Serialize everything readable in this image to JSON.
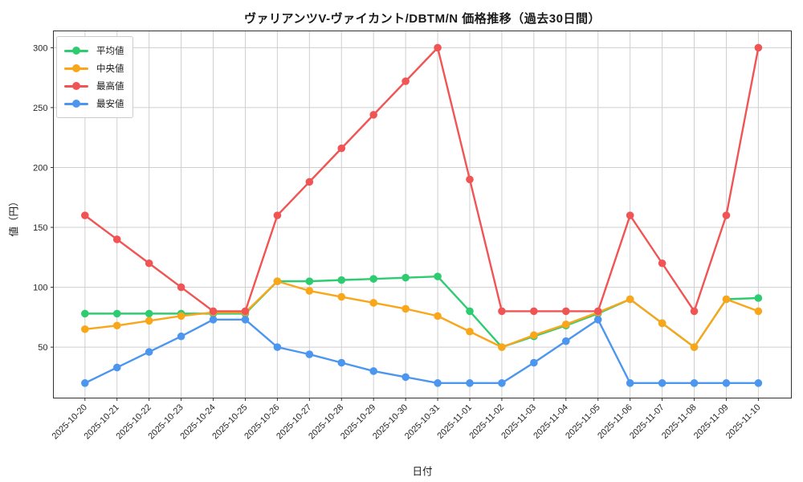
{
  "window": {
    "title": "price-history-chart"
  },
  "header": {
    "title": "ヴァリアンツV-ヴァイカント/DBTM/N 価格推移（過去30日間）"
  },
  "axes": {
    "xlabel": "日付",
    "ylabel": "値（円）"
  },
  "colors": {
    "average": "#2ecc71",
    "median": "#f9a61b",
    "max": "#f05454",
    "min": "#4c96f0",
    "grid": "#cfcfcf",
    "spine": "#333333",
    "text": "#262626",
    "background": "#ffffff"
  },
  "chart_data": {
    "type": "line",
    "title": "ヴァリアンツV-ヴァイカント/DBTM/N 価格推移（過去30日間）",
    "xlabel": "日付",
    "ylabel": "値（円）",
    "x": [
      "2025-10-20",
      "2025-10-21",
      "2025-10-22",
      "2025-10-23",
      "2025-10-24",
      "2025-10-25",
      "2025-10-26",
      "2025-10-27",
      "2025-10-28",
      "2025-10-29",
      "2025-10-30",
      "2025-10-31",
      "2025-11-01",
      "2025-11-02",
      "2025-11-03",
      "2025-11-04",
      "2025-11-05",
      "2025-11-06",
      "2025-11-07",
      "2025-11-08",
      "2025-11-09",
      "2025-11-10"
    ],
    "series": [
      {
        "id": "average",
        "name": "平均値",
        "color": "#2ecc71",
        "values": [
          78,
          78,
          78,
          78,
          78,
          78,
          105,
          105,
          106,
          107,
          108,
          109,
          80,
          50,
          59,
          68,
          78,
          90,
          70,
          50,
          90,
          91
        ]
      },
      {
        "id": "median",
        "name": "中央値",
        "color": "#f9a61b",
        "values": [
          65,
          68,
          72,
          76,
          79,
          79,
          105,
          97,
          92,
          87,
          82,
          76,
          63,
          50,
          60,
          69,
          79,
          90,
          70,
          50,
          90,
          80
        ]
      },
      {
        "id": "max",
        "name": "最高値",
        "color": "#f05454",
        "values": [
          160,
          140,
          120,
          100,
          80,
          80,
          160,
          188,
          216,
          244,
          272,
          300,
          190,
          80,
          80,
          80,
          80,
          160,
          120,
          80,
          160,
          300
        ]
      },
      {
        "id": "min",
        "name": "最安値",
        "color": "#4c96f0",
        "values": [
          20,
          33,
          46,
          59,
          73,
          73,
          50,
          44,
          37,
          30,
          25,
          20,
          20,
          20,
          37,
          55,
          73,
          20,
          20,
          20,
          20,
          20
        ]
      }
    ],
    "yticks": [
      50,
      100,
      150,
      200,
      250,
      300
    ],
    "ylim": [
      7.5,
      314
    ],
    "grid": true,
    "legend_position": "upper left",
    "marker": "circle"
  }
}
